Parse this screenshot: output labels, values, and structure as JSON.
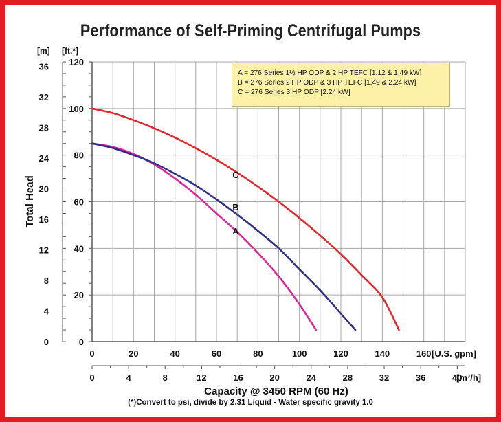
{
  "chart_data": {
    "type": "line",
    "title": "Performance of Self-Priming Centrifugal Pumps",
    "ylabel": "Total Head",
    "y_unit_left": "[m]",
    "y_unit_right": "[ft.*]",
    "x_unit_gpm": "[U.S. gpm]",
    "x_unit_m3h": "[m³/h]",
    "xlabel": "Capacity @ 3450 RPM (60 Hz)",
    "footnote": "(*)Convert to psi, divide by 2.31     Liquid - Water specific gravity 1.0",
    "x_gpm_ticks": [
      0,
      20,
      40,
      60,
      80,
      100,
      120,
      140,
      160
    ],
    "x_m3h_ticks": [
      0,
      4,
      8,
      12,
      16,
      20,
      24,
      28,
      32,
      36,
      40
    ],
    "y_ft_ticks": [
      0,
      20,
      40,
      60,
      80,
      100,
      120
    ],
    "y_m_ticks": [
      0,
      4,
      8,
      12,
      16,
      20,
      24,
      28,
      32,
      36
    ],
    "xlim_gpm": [
      0,
      180
    ],
    "ylim_ft": [
      0,
      120
    ],
    "grid": true,
    "legend": {
      "position": "top-right",
      "entries": [
        "A = 276 Series 1½ HP ODP & 2 HP TEFC [1.12 & 1.49 kW]",
        "B = 276 Series 2 HP ODP & 3 HP TEFC [1.49 & 2.24 kW]",
        "C = 276 Series 3 HP ODP [2.24 kW]"
      ]
    },
    "series": [
      {
        "name": "A",
        "color": "#e0249a",
        "x": [
          0,
          10,
          20,
          30,
          40,
          50,
          60,
          70,
          80,
          90,
          100,
          108
        ],
        "y": [
          85,
          83.5,
          80.5,
          76,
          70,
          63,
          55,
          47,
          38,
          28,
          16,
          5
        ]
      },
      {
        "name": "B",
        "color": "#2e3088",
        "x": [
          0,
          10,
          20,
          30,
          40,
          50,
          60,
          70,
          80,
          90,
          100,
          110,
          120,
          127
        ],
        "y": [
          85,
          83,
          80,
          76.5,
          72,
          67,
          61,
          54.5,
          47.5,
          40,
          31,
          22,
          12,
          5
        ]
      },
      {
        "name": "C",
        "color": "#e3262a",
        "x": [
          0,
          10,
          20,
          30,
          40,
          50,
          60,
          70,
          80,
          90,
          100,
          110,
          120,
          130,
          140,
          148
        ],
        "y": [
          100,
          98,
          95,
          91.5,
          87.5,
          83,
          78,
          72.5,
          66.5,
          60,
          53,
          45.5,
          37.5,
          28.5,
          19,
          5
        ]
      }
    ],
    "curve_labels": [
      "A",
      "B",
      "C"
    ]
  }
}
